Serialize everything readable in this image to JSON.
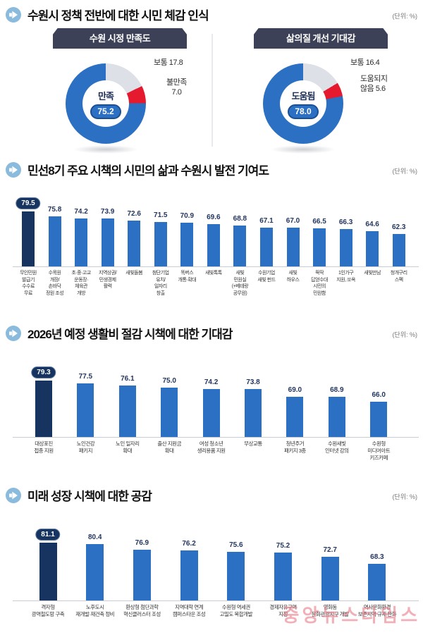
{
  "unit_label": "(단위: %)",
  "watermark": "중앙뉴스타임스",
  "sections": [
    {
      "title": "수원시 정책 전반에 대한 시민 체감 인식"
    },
    {
      "title": "민선8기 주요 시책의 시민의 삶과 수원시 발전 기여도"
    },
    {
      "title": "2026년 예정 생활비 절감 시책에 대한 기대감"
    },
    {
      "title": "미래 성장 시책에 대한 공감"
    }
  ],
  "chart_data": [
    {
      "type": "pie",
      "banner": "수원 시정 만족도",
      "center_label": "만족",
      "center_value": "75.2",
      "callout_top": "보통 17.8",
      "callout_side": "불만족\n7.0",
      "segments": [
        {
          "label": "보통",
          "value": 17.8,
          "color": "#dde1e7"
        },
        {
          "label": "불만족",
          "value": 7.0,
          "color": "#e51a2e"
        },
        {
          "label": "만족",
          "value": 75.2,
          "color": "#2b70c2"
        }
      ]
    },
    {
      "type": "pie",
      "banner": "삶의질 개선 기대감",
      "center_label": "도움됨",
      "center_value": "78.0",
      "callout_top": "보통 16.4",
      "callout_side": "도움되지\n않음 5.6",
      "segments": [
        {
          "label": "보통",
          "value": 16.4,
          "color": "#dde1e7"
        },
        {
          "label": "도움되지 않음",
          "value": 5.6,
          "color": "#e51a2e"
        },
        {
          "label": "도움됨",
          "value": 78.0,
          "color": "#2b70c2"
        }
      ]
    },
    {
      "type": "bar",
      "title": "민선8기 주요 시책의 시민의 삶과 수원시 발전 기여도",
      "ylabel": "%",
      "highlight_index": 0,
      "categories": [
        "무인민원\n발급기\n수수료\n무료",
        "수목원\n개장/\n손바닥\n정원 조성",
        "초·중·고교\n운동장·\n체육관\n개방",
        "지역상권/\n민생경제\n활력",
        "새빛돌봄",
        "첨단기업\n유치/\n일자리\n창출",
        "똑버스\n개통·확대",
        "새빛톡톡",
        "새빛\n민원실\n(+베테랑\n공무원)",
        "수원기업\n새빛 펀드",
        "새빛\n하우스",
        "뚝딱\n답얻수대\n시민의\n민원함",
        "1인가구\n지원, 쏘옥",
        "새빛만남",
        "청개구리\n스펙"
      ],
      "values": [
        79.5,
        75.8,
        74.2,
        73.9,
        72.6,
        71.5,
        70.9,
        69.6,
        68.8,
        67.1,
        67.0,
        66.5,
        66.3,
        64.6,
        62.3
      ]
    },
    {
      "type": "bar",
      "title": "2026년 예정 생활비 절감 시책에 대한 기대감",
      "ylabel": "%",
      "highlight_index": 0,
      "categories": [
        "대상포진\n접종 지원",
        "노인건강\n패키지",
        "노인 일자리\n확대",
        "출산 지원금\n확대",
        "여성 청소년\n생리용품 지원",
        "무상교통",
        "청년주거\n패키지 3종",
        "수원새빛\n인터넷 강의",
        "수원형\n미디어아트\n키즈카페"
      ],
      "values": [
        79.3,
        77.5,
        76.1,
        75.0,
        74.2,
        73.8,
        69.0,
        68.9,
        66.0
      ]
    },
    {
      "type": "bar",
      "title": "미래 성장 시책에 대한 공감",
      "ylabel": "%",
      "highlight_index": 0,
      "categories": [
        "격자형\n광역철도망 구축",
        "노후도시\n재개발·재건축 정비",
        "환상형 첨단과학\n혁신클러스터 조성",
        "지역대학 연계\n캠퍼스타운 조성",
        "수원형 역세권\n고밀도 복합개발",
        "경제자유구역\n지정",
        "영화동\n문화관광지구 개발",
        "역사문화환경\n보존지역 규제 완화"
      ],
      "values": [
        81.1,
        80.4,
        76.9,
        76.2,
        75.6,
        75.2,
        72.7,
        68.3
      ]
    }
  ]
}
